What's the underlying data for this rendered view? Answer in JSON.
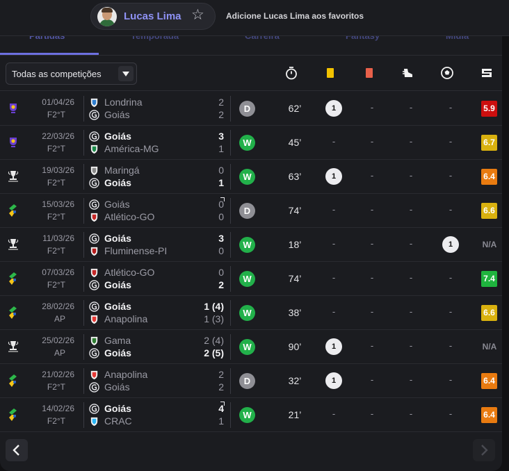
{
  "header": {
    "player_name": "Lucas Lima",
    "favorite_text": "Adicione Lucas Lima aos favoritos"
  },
  "tabs": [
    {
      "label": "Partidas",
      "active": true
    },
    {
      "label": "Temporada",
      "active": false
    },
    {
      "label": "Carreira",
      "active": false
    },
    {
      "label": "Fantasy",
      "active": false
    },
    {
      "label": "Mídia",
      "active": false
    }
  ],
  "filter": {
    "competition_label": "Todas as competições"
  },
  "columns": [
    "minutes-played-icon",
    "yellow-card-icon",
    "red-card-icon",
    "assist-boot-icon",
    "goal-ball-icon",
    "rating-icon"
  ],
  "matches": [
    {
      "comp": "trophy-purple",
      "date": "01/04/26",
      "stage": "F2°T",
      "team1": "Londrina",
      "team2": "Goiás",
      "score1": "2",
      "score2": "2",
      "bold": 0,
      "result": "D",
      "minutes": "62’",
      "yellow": "1",
      "red": "-",
      "assists": "-",
      "goals": "-",
      "rating": "5.9",
      "rating_color": "#cc0f0f"
    },
    {
      "comp": "trophy-purple",
      "date": "22/03/26",
      "stage": "F2°T",
      "team1": "Goiás",
      "team2": "América-MG",
      "score1": "3",
      "score2": "1",
      "bold": 1,
      "result": "W",
      "minutes": "45’",
      "yellow": "-",
      "red": "-",
      "assists": "-",
      "goals": "-",
      "rating": "6.7",
      "rating_color": "#d9b10f"
    },
    {
      "comp": "copa-brasil",
      "date": "19/03/26",
      "stage": "F2°T",
      "team1": "Maringá",
      "team2": "Goiás",
      "score1": "0",
      "score2": "1",
      "bold": 2,
      "result": "W",
      "minutes": "63’",
      "yellow": "1",
      "red": "-",
      "assists": "-",
      "goals": "-",
      "rating": "6.4",
      "rating_color": "#e97b10"
    },
    {
      "comp": "goiano",
      "date": "15/03/26",
      "stage": "F2°T",
      "team1": "Goiás",
      "team2": "Atlético-GO",
      "score1": "0",
      "score2": "0",
      "bold": 0,
      "flag": true,
      "result": "D",
      "minutes": "74’",
      "yellow": "-",
      "red": "-",
      "assists": "-",
      "goals": "-",
      "rating": "6.6",
      "rating_color": "#d9b10f"
    },
    {
      "comp": "copa-brasil",
      "date": "11/03/26",
      "stage": "F2°T",
      "team1": "Goiás",
      "team2": "Fluminense-PI",
      "score1": "3",
      "score2": "0",
      "bold": 1,
      "result": "W",
      "minutes": "18’",
      "yellow": "-",
      "red": "-",
      "assists": "-",
      "goals": "1",
      "rating": "N/A",
      "rating_color": ""
    },
    {
      "comp": "goiano",
      "date": "07/03/26",
      "stage": "F2°T",
      "team1": "Atlético-GO",
      "team2": "Goiás",
      "score1": "0",
      "score2": "2",
      "bold": 2,
      "result": "W",
      "minutes": "74’",
      "yellow": "-",
      "red": "-",
      "assists": "-",
      "goals": "-",
      "rating": "7.4",
      "rating_color": "#1fb43e"
    },
    {
      "comp": "goiano",
      "date": "28/02/26",
      "stage": "AP",
      "team1": "Goiás",
      "team2": "Anapolina",
      "score1": "1 (4)",
      "score2": "1 (3)",
      "bold": 1,
      "result": "W",
      "minutes": "38’",
      "yellow": "-",
      "red": "-",
      "assists": "-",
      "goals": "-",
      "rating": "6.6",
      "rating_color": "#d9b10f"
    },
    {
      "comp": "copa-brasil",
      "date": "25/02/26",
      "stage": "AP",
      "team1": "Gama",
      "team2": "Goiás",
      "score1": "2 (4)",
      "score2": "2 (5)",
      "bold": 2,
      "result": "W",
      "minutes": "90’",
      "yellow": "1",
      "red": "-",
      "assists": "-",
      "goals": "-",
      "rating": "N/A",
      "rating_color": ""
    },
    {
      "comp": "goiano",
      "date": "21/02/26",
      "stage": "F2°T",
      "team1": "Anapolina",
      "team2": "Goiás",
      "score1": "2",
      "score2": "2",
      "bold": 0,
      "result": "D",
      "minutes": "32’",
      "yellow": "1",
      "red": "-",
      "assists": "-",
      "goals": "-",
      "rating": "6.4",
      "rating_color": "#e97b10"
    },
    {
      "comp": "goiano",
      "date": "14/02/26",
      "stage": "F2°T",
      "team1": "Goiás",
      "team2": "CRAC",
      "score1": "4",
      "score2": "1",
      "bold": 1,
      "flag": true,
      "result": "W",
      "minutes": "21’",
      "yellow": "-",
      "red": "-",
      "assists": "-",
      "goals": "-",
      "rating": "6.4",
      "rating_color": "#e97b10"
    }
  ],
  "crests": {
    "Londrina": "#2f7fd1",
    "Goiás": "#1f8a3a",
    "América-MG": "#1c8a4a",
    "Maringá": "#8a8a8a",
    "Atlético-GO": "#c62828",
    "Fluminense-PI": "#b71c1c",
    "Anapolina": "#e53935",
    "Gama": "#2e7d32",
    "CRAC": "#29b6f6"
  },
  "nav": {
    "prev_icon": "chevron-left-icon",
    "next_icon": "chevron-right-icon"
  }
}
